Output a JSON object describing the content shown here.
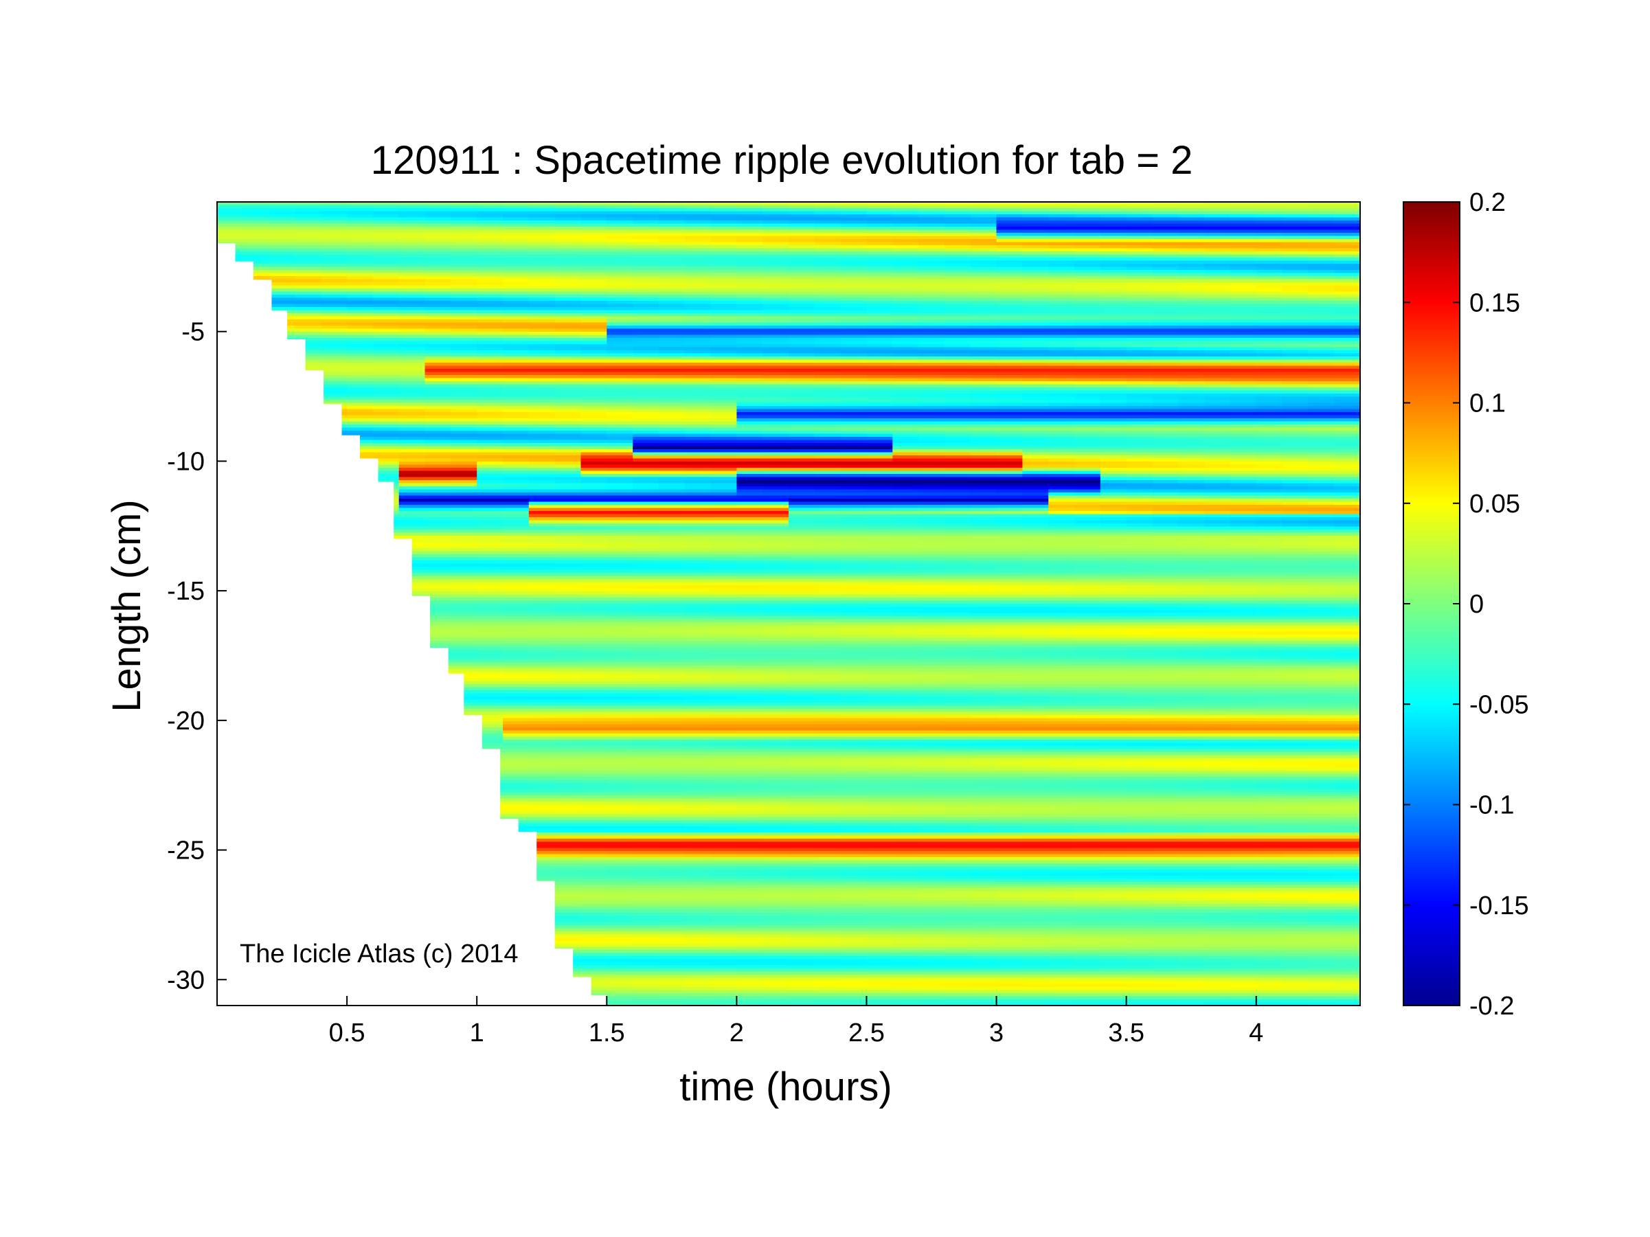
{
  "chart_data": {
    "type": "heatmap",
    "title": "120911 : Spacetime ripple evolution for tab = 2",
    "xlabel": "time (hours)",
    "ylabel": "Length (cm)",
    "xlim": [
      0,
      4.4
    ],
    "ylim": [
      -31,
      0
    ],
    "x_ticks": [
      0.5,
      1,
      1.5,
      2,
      2.5,
      3,
      3.5,
      4
    ],
    "x_tick_labels": [
      "0.5",
      "1",
      "1.5",
      "2",
      "2.5",
      "3",
      "3.5",
      "4"
    ],
    "y_ticks": [
      -5,
      -10,
      -15,
      -20,
      -25,
      -30
    ],
    "y_tick_labels": [
      "-5",
      "-10",
      "-15",
      "-20",
      "-25",
      "-30"
    ],
    "colorbar": {
      "colormap": "jet",
      "clim": [
        -0.2,
        0.2
      ],
      "ticks": [
        0.2,
        0.15,
        0.1,
        0.05,
        0,
        -0.05,
        -0.1,
        -0.15,
        -0.2
      ],
      "tick_labels": [
        "0.2",
        "0.15",
        "0.1",
        "0.05",
        "0",
        "-0.05",
        "-0.1",
        "-0.15",
        "-0.2"
      ]
    },
    "growth_front": {
      "description_of_values": "time (hours) at which data begins for each length",
      "points": [
        [
          0,
          -1
        ],
        [
          0.07,
          -1.6
        ],
        [
          0.14,
          -2.3
        ],
        [
          0.21,
          -3
        ],
        [
          0.27,
          -4.2
        ],
        [
          0.34,
          -5.3
        ],
        [
          0.41,
          -6.5
        ],
        [
          0.48,
          -7.8
        ],
        [
          0.55,
          -9.0
        ],
        [
          0.62,
          -9.9
        ],
        [
          0.68,
          -10.8
        ],
        [
          0.68,
          -12.2
        ],
        [
          0.75,
          -13.0
        ],
        [
          0.75,
          -14.2
        ],
        [
          0.82,
          -15.2
        ],
        [
          0.82,
          -16.5
        ],
        [
          0.89,
          -17.2
        ],
        [
          0.95,
          -18.2
        ],
        [
          0.95,
          -19.2
        ],
        [
          1.02,
          -19.8
        ],
        [
          1.09,
          -21.1
        ],
        [
          1.09,
          -22.8
        ],
        [
          1.16,
          -23.8
        ],
        [
          1.23,
          -24.3
        ],
        [
          1.23,
          -25.0
        ],
        [
          1.3,
          -26.2
        ],
        [
          1.3,
          -28.0
        ],
        [
          1.37,
          -28.8
        ],
        [
          1.44,
          -29.9
        ],
        [
          1.5,
          -30.6
        ],
        [
          1.62,
          -31
        ]
      ]
    },
    "features": [
      {
        "length": -10.5,
        "t_start": 0.7,
        "t_end": 1.0,
        "value": 0.2
      },
      {
        "length": -11.5,
        "t_start": 0.75,
        "t_end": 3.2,
        "value": -0.18
      },
      {
        "length": -12.0,
        "t_start": 1.2,
        "t_end": 2.2,
        "value": 0.15
      },
      {
        "length": -9.5,
        "t_start": 1.6,
        "t_end": 2.6,
        "value": -0.2
      },
      {
        "length": -10.1,
        "t_start": 1.4,
        "t_end": 3.1,
        "value": 0.17
      },
      {
        "length": -10.8,
        "t_start": 2.0,
        "t_end": 3.4,
        "value": -0.2
      },
      {
        "length": -8.2,
        "t_start": 2.0,
        "t_end": 4.4,
        "value": -0.15
      },
      {
        "length": -6.5,
        "t_start": 0.8,
        "t_end": 4.4,
        "value": 0.14
      },
      {
        "length": -5.0,
        "t_start": 1.5,
        "t_end": 4.4,
        "value": -0.14
      },
      {
        "length": -1.0,
        "t_start": 3.0,
        "t_end": 4.4,
        "value": -0.15
      },
      {
        "length": -24.8,
        "t_start": 1.25,
        "t_end": 4.4,
        "value": 0.16
      },
      {
        "length": -20.3,
        "t_start": 1.1,
        "t_end": 4.4,
        "value": 0.1
      }
    ]
  },
  "watermark": "The Icicle Atlas (c) 2014"
}
